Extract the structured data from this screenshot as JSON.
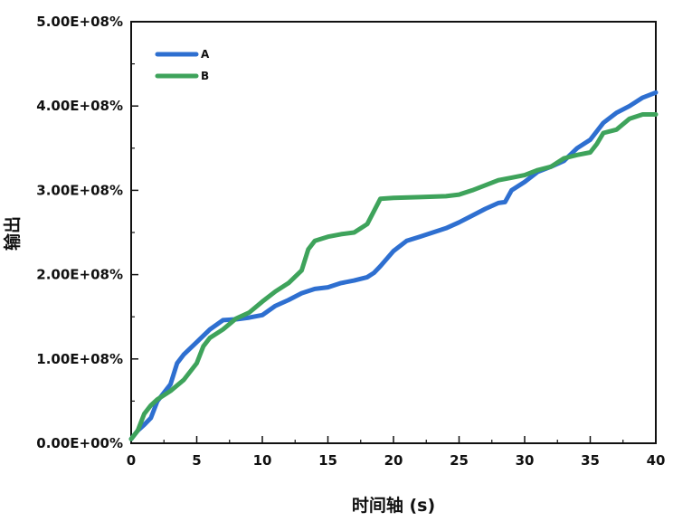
{
  "chart_data": {
    "type": "line",
    "title": "",
    "xlabel": "时间轴 (s)",
    "ylabel": "输出",
    "xlim": [
      0,
      40
    ],
    "ylim": [
      0,
      500000000
    ],
    "x_ticks": [
      "0",
      "5",
      "10",
      "15",
      "20",
      "25",
      "30",
      "35",
      "40"
    ],
    "y_ticks": [
      "0.00E+00%",
      "1.00E+08%",
      "2.00E+08%",
      "3.00E+08%",
      "4.00E+08%",
      "5.00E+08%"
    ],
    "grid": false,
    "legend_position": "top-left",
    "series": [
      {
        "name": "A",
        "color": "#2e6fd0",
        "x": [
          0,
          0.5,
          1,
          1.5,
          2,
          2.5,
          3,
          3.5,
          4,
          5,
          6,
          7,
          8,
          9,
          10,
          11,
          12,
          13,
          14,
          15,
          16,
          17,
          18,
          18.5,
          19,
          20,
          21,
          22,
          23,
          24,
          25,
          26,
          27,
          28,
          28.5,
          29,
          30,
          31,
          32,
          33,
          34,
          35,
          36,
          37,
          38,
          39,
          40
        ],
        "y": [
          5000000,
          15000000,
          22000000,
          30000000,
          50000000,
          60000000,
          70000000,
          95000000,
          105000000,
          120000000,
          135000000,
          146000000,
          147000000,
          149000000,
          152000000,
          163000000,
          170000000,
          178000000,
          183000000,
          185000000,
          190000000,
          193000000,
          197000000,
          202000000,
          210000000,
          228000000,
          240000000,
          245000000,
          250000000,
          255000000,
          262000000,
          270000000,
          278000000,
          285000000,
          286000000,
          300000000,
          310000000,
          322000000,
          328000000,
          335000000,
          350000000,
          360000000,
          380000000,
          392000000,
          400000000,
          410000000,
          416000000
        ]
      },
      {
        "name": "B",
        "color": "#3ea35b",
        "x": [
          0,
          0.5,
          1,
          1.5,
          2,
          3,
          4,
          5,
          5.5,
          6,
          7,
          8,
          9,
          10,
          11,
          12,
          13,
          13.5,
          14,
          15,
          16,
          17,
          18,
          19,
          20,
          22,
          24,
          25,
          26,
          27,
          28,
          29,
          30,
          31,
          32,
          33,
          34,
          35,
          35.5,
          36,
          37,
          38,
          39,
          40
        ],
        "y": [
          5000000,
          15000000,
          35000000,
          45000000,
          52000000,
          62000000,
          75000000,
          95000000,
          115000000,
          125000000,
          135000000,
          148000000,
          155000000,
          168000000,
          180000000,
          190000000,
          205000000,
          230000000,
          240000000,
          245000000,
          248000000,
          250000000,
          260000000,
          290000000,
          291000000,
          292000000,
          293000000,
          295000000,
          300000000,
          306000000,
          312000000,
          315000000,
          318000000,
          324000000,
          328000000,
          338000000,
          342000000,
          345000000,
          355000000,
          368000000,
          372000000,
          385000000,
          390000000,
          390000000
        ]
      }
    ]
  }
}
